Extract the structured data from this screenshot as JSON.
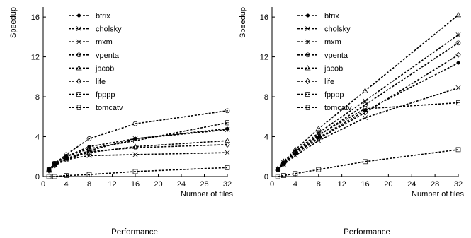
{
  "chart_data": [
    {
      "type": "line",
      "title": "",
      "caption": "Performance",
      "xlabel": "Number of tiles",
      "ylabel": "Speedup",
      "xlim": [
        0,
        32
      ],
      "ylim": [
        0,
        17
      ],
      "xticks": [
        0,
        4,
        8,
        12,
        16,
        20,
        24,
        28,
        32
      ],
      "yticks": [
        0,
        4,
        8,
        12,
        16
      ],
      "grid": false,
      "legend_position": "top-left",
      "x": [
        1,
        2,
        4,
        8,
        16,
        32
      ],
      "series": [
        {
          "name": "btrix",
          "marker": "filled-circle",
          "values": [
            0.7,
            1.3,
            2.0,
            3.0,
            3.8,
            4.8
          ]
        },
        {
          "name": "cholsky",
          "marker": "x",
          "values": [
            0.6,
            1.2,
            1.7,
            2.1,
            2.2,
            2.4
          ]
        },
        {
          "name": "mxm",
          "marker": "star",
          "values": [
            0.7,
            1.2,
            1.8,
            2.6,
            3.8,
            4.7
          ]
        },
        {
          "name": "vpenta",
          "marker": "circle-dot",
          "values": [
            0.7,
            1.3,
            2.2,
            3.8,
            5.3,
            6.6
          ]
        },
        {
          "name": "jacobi",
          "marker": "triangle",
          "values": [
            0.7,
            1.2,
            1.8,
            2.4,
            3.0,
            3.6
          ]
        },
        {
          "name": "life",
          "marker": "diamond",
          "values": [
            0.6,
            1.1,
            1.7,
            2.5,
            2.9,
            3.2
          ]
        },
        {
          "name": "fpppp",
          "marker": "square",
          "values": [
            0.0,
            0.0,
            0.1,
            0.2,
            0.5,
            0.9
          ]
        },
        {
          "name": "tomcatv",
          "marker": "box-line",
          "values": [
            0.7,
            1.3,
            2.0,
            2.8,
            3.6,
            5.4
          ]
        }
      ]
    },
    {
      "type": "line",
      "title": "",
      "caption": "Performance",
      "xlabel": "Number of tiles",
      "ylabel": "Speedup",
      "xlim": [
        0,
        32
      ],
      "ylim": [
        0,
        17
      ],
      "xticks": [
        0,
        4,
        8,
        12,
        16,
        20,
        24,
        28,
        32
      ],
      "yticks": [
        0,
        4,
        8,
        12,
        16
      ],
      "grid": false,
      "legend_position": "top-left",
      "x": [
        1,
        2,
        4,
        8,
        16,
        32
      ],
      "series": [
        {
          "name": "btrix",
          "marker": "filled-circle",
          "values": [
            0.7,
            1.3,
            2.3,
            3.9,
            6.6,
            11.4
          ]
        },
        {
          "name": "cholsky",
          "marker": "x",
          "values": [
            0.7,
            1.2,
            2.1,
            3.6,
            5.9,
            8.9
          ]
        },
        {
          "name": "mxm",
          "marker": "star",
          "values": [
            0.7,
            1.4,
            2.5,
            4.4,
            7.6,
            14.2
          ]
        },
        {
          "name": "vpenta",
          "marker": "circle-dot",
          "values": [
            0.7,
            1.3,
            2.4,
            4.1,
            7.2,
            13.4
          ]
        },
        {
          "name": "jacobi",
          "marker": "triangle",
          "values": [
            0.8,
            1.5,
            2.7,
            4.8,
            8.6,
            16.2
          ]
        },
        {
          "name": "life",
          "marker": "diamond",
          "values": [
            0.7,
            1.3,
            2.3,
            3.8,
            6.4,
            12.2
          ]
        },
        {
          "name": "fpppp",
          "marker": "square",
          "values": [
            0.0,
            0.1,
            0.3,
            0.7,
            1.5,
            2.7
          ]
        },
        {
          "name": "tomcatv",
          "marker": "box-line",
          "values": [
            0.7,
            1.3,
            2.4,
            4.2,
            6.8,
            7.4
          ]
        }
      ]
    }
  ]
}
